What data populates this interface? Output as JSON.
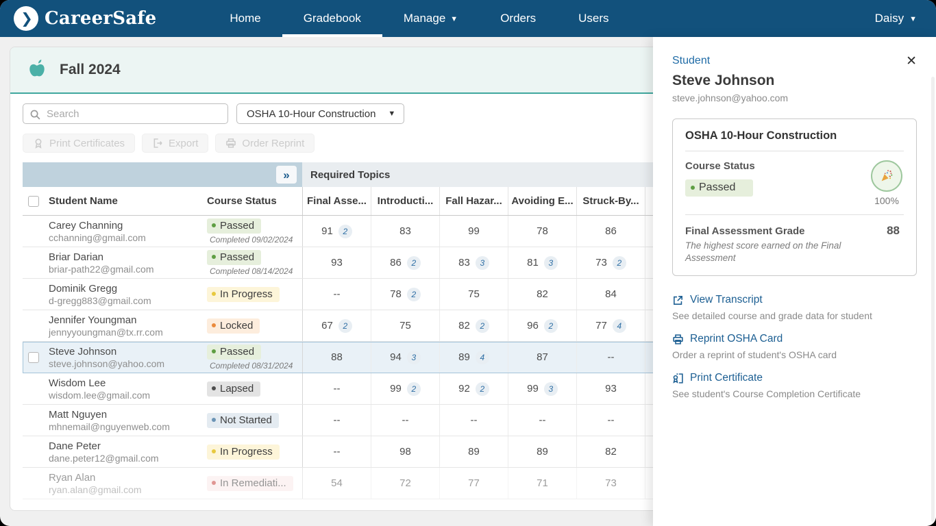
{
  "nav": {
    "brand": "CareerSafe",
    "items": [
      {
        "label": "Home"
      },
      {
        "label": "Gradebook"
      },
      {
        "label": "Manage"
      },
      {
        "label": "Orders"
      },
      {
        "label": "Users"
      }
    ],
    "user_label": "Daisy"
  },
  "header": {
    "title": "Fall 2024"
  },
  "toolbar": {
    "search_placeholder": "Search",
    "course_filter": "OSHA 10-Hour Construction",
    "print_certificates_label": "Print Certificates",
    "export_label": "Export",
    "order_reprint_label": "Order Reprint"
  },
  "table": {
    "group_header": "Required Topics",
    "columns": [
      "Student Name",
      "Course Status"
    ],
    "grade_columns": [
      "Final Asse...",
      "Introducti...",
      "Fall Hazar...",
      "Avoiding E...",
      "Struck-By..."
    ],
    "rows": [
      {
        "name": "Carey Channing",
        "email": "cchanning@gmail.com",
        "status": "Passed",
        "status_type": "passed",
        "completed": "Completed  09/02/2024",
        "grades": [
          {
            "v": "91",
            "attempts": "2"
          },
          {
            "v": "83"
          },
          {
            "v": "99"
          },
          {
            "v": "78"
          },
          {
            "v": "86"
          }
        ]
      },
      {
        "name": "Briar Darian",
        "email": "briar-path22@gmail.com",
        "status": "Passed",
        "status_type": "passed",
        "completed": "Completed  08/14/2024",
        "grades": [
          {
            "v": "93"
          },
          {
            "v": "86",
            "attempts": "2"
          },
          {
            "v": "83",
            "attempts": "3"
          },
          {
            "v": "81",
            "attempts": "3"
          },
          {
            "v": "73",
            "attempts": "2"
          }
        ]
      },
      {
        "name": "Dominik Gregg",
        "email": "d-gregg883@gmail.com",
        "status": "In Progress",
        "status_type": "in-progress",
        "grades": [
          {
            "v": "--"
          },
          {
            "v": "78",
            "attempts": "2"
          },
          {
            "v": "75"
          },
          {
            "v": "82"
          },
          {
            "v": "84"
          }
        ]
      },
      {
        "name": "Jennifer Youngman",
        "email": "jennyyoungman@tx.rr.com",
        "status": "Locked",
        "status_type": "locked",
        "grades": [
          {
            "v": "67",
            "attempts": "2"
          },
          {
            "v": "75"
          },
          {
            "v": "82",
            "attempts": "2"
          },
          {
            "v": "96",
            "attempts": "2"
          },
          {
            "v": "77",
            "attempts": "4"
          }
        ]
      },
      {
        "name": "Steve Johnson",
        "email": "steve.johnson@yahoo.com",
        "status": "Passed",
        "status_type": "passed",
        "completed": "Completed  08/31/2024",
        "selected": true,
        "grades": [
          {
            "v": "88"
          },
          {
            "v": "94",
            "attempts": "3"
          },
          {
            "v": "89",
            "attempts": "4"
          },
          {
            "v": "87"
          },
          {
            "v": "--"
          }
        ]
      },
      {
        "name": "Wisdom Lee",
        "email": "wisdom.lee@gmail.com",
        "status": "Lapsed",
        "status_type": "lapsed",
        "grades": [
          {
            "v": "--"
          },
          {
            "v": "99",
            "attempts": "2"
          },
          {
            "v": "92",
            "attempts": "2"
          },
          {
            "v": "99",
            "attempts": "3"
          },
          {
            "v": "93"
          }
        ]
      },
      {
        "name": "Matt Nguyen",
        "email": "mhnemail@nguyenweb.com",
        "status": "Not Started",
        "status_type": "not-started",
        "grades": [
          {
            "v": "--"
          },
          {
            "v": "--"
          },
          {
            "v": "--"
          },
          {
            "v": "--"
          },
          {
            "v": "--"
          }
        ]
      },
      {
        "name": "Dane Peter",
        "email": "dane.peter12@gmail.com",
        "status": "In Progress",
        "status_type": "in-progress",
        "grades": [
          {
            "v": "--"
          },
          {
            "v": "98"
          },
          {
            "v": "89"
          },
          {
            "v": "89"
          },
          {
            "v": "82"
          }
        ]
      },
      {
        "name": "Ryan Alan",
        "email": "ryan.alan@gmail.com",
        "status": "In Remediati...",
        "status_type": "remediation",
        "faded": true,
        "grades": [
          {
            "v": "54"
          },
          {
            "v": "72"
          },
          {
            "v": "77"
          },
          {
            "v": "71"
          },
          {
            "v": "73"
          }
        ]
      }
    ]
  },
  "panel": {
    "eyebrow": "Student",
    "name": "Steve Johnson",
    "email": "steve.johnson@yahoo.com",
    "card": {
      "title": "OSHA 10-Hour Construction",
      "status_label": "Course Status",
      "status": "Passed",
      "progress": "100%",
      "grade_label": "Final Assessment Grade",
      "grade": "88",
      "grade_note": "The highest score earned on the Final Assessment"
    },
    "links": [
      {
        "label": "View Transcript",
        "desc": "See detailed course and grade data for student"
      },
      {
        "label": "Reprint OSHA Card",
        "desc": "Order a reprint of student's OSHA card"
      },
      {
        "label": "Print Certificate",
        "desc": "See student's Course Completion Certificate"
      }
    ]
  },
  "colors": {
    "nav_blue": "#12517c",
    "teal_accent": "#4bb0a7",
    "link_blue": "#1b5e92",
    "passed_green": "#5f9e43",
    "in_progress_yellow": "#e7c93f",
    "locked_orange": "#ea8a3c",
    "remediation_red": "#c8423c",
    "not_started_blue": "#6b94b5"
  }
}
